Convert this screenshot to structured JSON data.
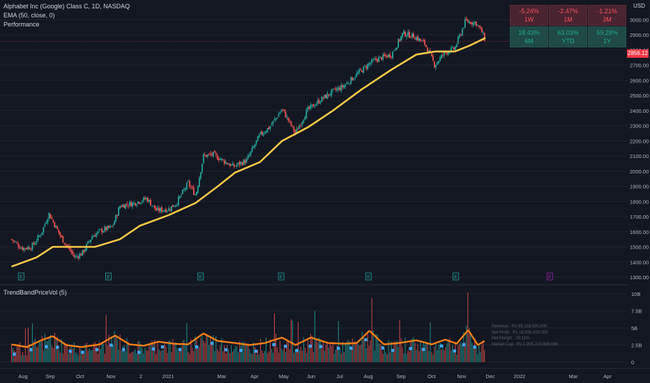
{
  "header": {
    "title": "Alphabet Inc (Google) Class C, 1D, NASDAQ",
    "indicator": "EMA (50, close, 0)",
    "performance_label": "Performance"
  },
  "currency": "USD",
  "last_price": "2856.12",
  "performance": [
    {
      "value": "-5.24%",
      "period": "1W",
      "status": "neg"
    },
    {
      "value": "-2.47%",
      "period": "1M",
      "status": "neg"
    },
    {
      "value": "-1.21%",
      "period": "3M",
      "status": "neg"
    },
    {
      "value": "18.43%",
      "period": "6M",
      "status": "pos"
    },
    {
      "value": "63.03%",
      "period": "YTD",
      "status": "pos"
    },
    {
      "value": "59.28%",
      "period": "1Y",
      "status": "pos"
    }
  ],
  "volume_panel": {
    "title": "TrendBandPriceVol (5)",
    "financials": [
      "Revenue : Rs 65,118,000,000",
      "Net Profit : Rs 18,936,000,000",
      "Net Margin : 29.11%",
      "Market Cap : Rs 1,905,219,888,666"
    ]
  },
  "colors": {
    "background": "#131722",
    "up": "#26a69a",
    "down": "#ef5350",
    "ema": "#f7c948",
    "trend_band": "#f57f17",
    "dots": "#42a5f5",
    "earnings": "#26a69a",
    "future_earnings": "#9c27b0"
  },
  "chart_data": [
    {
      "type": "candlestick",
      "title": "Alphabet Inc (Google) Class C, 1D, NASDAQ",
      "y_range": [
        1300,
        3100
      ],
      "y_ticks": [
        1300,
        1400,
        1500,
        1600,
        1700,
        1800,
        1900,
        2000,
        2100,
        2200,
        2300,
        2400,
        2500,
        2600,
        2700,
        2800,
        2900,
        3000
      ],
      "x_ticks": [
        "Aug",
        "Sep",
        "Oct",
        "Nov",
        "2",
        "2021",
        "Mar",
        "Apr",
        "May",
        "Jun",
        "Jul",
        "Aug",
        "Sep",
        "Oct",
        "Nov",
        "Dec",
        "2022",
        "Mar",
        "Apr"
      ],
      "close_series": [
        {
          "date": "2020-07-20",
          "value": 1550
        },
        {
          "date": "2020-07-31",
          "value": 1490
        },
        {
          "date": "2020-08-10",
          "value": 1500
        },
        {
          "date": "2020-08-20",
          "value": 1590
        },
        {
          "date": "2020-08-28",
          "value": 1720
        },
        {
          "date": "2020-09-10",
          "value": 1560
        },
        {
          "date": "2020-09-24",
          "value": 1430
        },
        {
          "date": "2020-10-02",
          "value": 1460
        },
        {
          "date": "2020-10-12",
          "value": 1570
        },
        {
          "date": "2020-10-22",
          "value": 1610
        },
        {
          "date": "2020-11-02",
          "value": 1630
        },
        {
          "date": "2020-11-10",
          "value": 1770
        },
        {
          "date": "2020-11-25",
          "value": 1790
        },
        {
          "date": "2020-12-08",
          "value": 1820
        },
        {
          "date": "2020-12-18",
          "value": 1740
        },
        {
          "date": "2020-12-31",
          "value": 1750
        },
        {
          "date": "2021-01-08",
          "value": 1790
        },
        {
          "date": "2021-01-20",
          "value": 1920
        },
        {
          "date": "2021-01-28",
          "value": 1840
        },
        {
          "date": "2021-02-05",
          "value": 2100
        },
        {
          "date": "2021-02-15",
          "value": 2110
        },
        {
          "date": "2021-02-28",
          "value": 2060
        },
        {
          "date": "2021-03-08",
          "value": 2030
        },
        {
          "date": "2021-03-22",
          "value": 2070
        },
        {
          "date": "2021-04-05",
          "value": 2240
        },
        {
          "date": "2021-04-15",
          "value": 2290
        },
        {
          "date": "2021-04-28",
          "value": 2410
        },
        {
          "date": "2021-05-12",
          "value": 2250
        },
        {
          "date": "2021-05-24",
          "value": 2400
        },
        {
          "date": "2021-06-07",
          "value": 2470
        },
        {
          "date": "2021-06-21",
          "value": 2530
        },
        {
          "date": "2021-07-01",
          "value": 2560
        },
        {
          "date": "2021-07-15",
          "value": 2640
        },
        {
          "date": "2021-07-28",
          "value": 2710
        },
        {
          "date": "2021-08-05",
          "value": 2740
        },
        {
          "date": "2021-08-20",
          "value": 2770
        },
        {
          "date": "2021-09-01",
          "value": 2910
        },
        {
          "date": "2021-09-13",
          "value": 2890
        },
        {
          "date": "2021-09-24",
          "value": 2840
        },
        {
          "date": "2021-10-04",
          "value": 2700
        },
        {
          "date": "2021-10-14",
          "value": 2780
        },
        {
          "date": "2021-10-25",
          "value": 2810
        },
        {
          "date": "2021-11-05",
          "value": 2990
        },
        {
          "date": "2021-11-16",
          "value": 2980
        },
        {
          "date": "2021-11-22",
          "value": 2920
        },
        {
          "date": "2021-11-26",
          "value": 2856
        }
      ],
      "series": [
        {
          "name": "EMA (50, close, 0)",
          "values": [
            {
              "date": "2020-07-20",
              "value": 1370
            },
            {
              "date": "2020-08-15",
              "value": 1430
            },
            {
              "date": "2020-09-01",
              "value": 1500
            },
            {
              "date": "2020-09-20",
              "value": 1500
            },
            {
              "date": "2020-10-15",
              "value": 1500
            },
            {
              "date": "2020-11-10",
              "value": 1550
            },
            {
              "date": "2020-12-01",
              "value": 1640
            },
            {
              "date": "2020-12-31",
              "value": 1710
            },
            {
              "date": "2021-01-28",
              "value": 1790
            },
            {
              "date": "2021-02-20",
              "value": 1900
            },
            {
              "date": "2021-03-10",
              "value": 1990
            },
            {
              "date": "2021-04-05",
              "value": 2060
            },
            {
              "date": "2021-04-28",
              "value": 2200
            },
            {
              "date": "2021-05-25",
              "value": 2290
            },
            {
              "date": "2021-06-20",
              "value": 2400
            },
            {
              "date": "2021-07-20",
              "value": 2540
            },
            {
              "date": "2021-08-20",
              "value": 2670
            },
            {
              "date": "2021-09-15",
              "value": 2770
            },
            {
              "date": "2021-10-05",
              "value": 2790
            },
            {
              "date": "2021-10-25",
              "value": 2790
            },
            {
              "date": "2021-11-10",
              "value": 2830
            },
            {
              "date": "2021-11-26",
              "value": 2880
            }
          ]
        }
      ]
    },
    {
      "type": "bar",
      "title": "TrendBandPriceVol (5)",
      "y_range": [
        0,
        10000000000
      ],
      "y_ticks": [
        "0",
        "2.5B",
        "5B",
        "7.5B",
        "10B"
      ],
      "series": [
        {
          "name": "TrendBandPriceVol (5)",
          "values": [
            {
              "date": "2020-07-20",
              "value": 2.6
            },
            {
              "date": "2020-08-05",
              "value": 2.2
            },
            {
              "date": "2020-08-20",
              "value": 3.2
            },
            {
              "date": "2020-09-01",
              "value": 3.8
            },
            {
              "date": "2020-09-15",
              "value": 2.5
            },
            {
              "date": "2020-10-01",
              "value": 2.2
            },
            {
              "date": "2020-10-20",
              "value": 2.6
            },
            {
              "date": "2020-11-05",
              "value": 3.9
            },
            {
              "date": "2020-11-20",
              "value": 2.6
            },
            {
              "date": "2020-12-05",
              "value": 2.4
            },
            {
              "date": "2020-12-20",
              "value": 3.0
            },
            {
              "date": "2021-01-05",
              "value": 2.7
            },
            {
              "date": "2021-01-20",
              "value": 2.6
            },
            {
              "date": "2021-02-05",
              "value": 4.2
            },
            {
              "date": "2021-02-20",
              "value": 3.1
            },
            {
              "date": "2021-03-10",
              "value": 2.8
            },
            {
              "date": "2021-03-25",
              "value": 2.5
            },
            {
              "date": "2021-04-10",
              "value": 2.8
            },
            {
              "date": "2021-04-28",
              "value": 3.6
            },
            {
              "date": "2021-05-12",
              "value": 2.5
            },
            {
              "date": "2021-05-28",
              "value": 3.6
            },
            {
              "date": "2021-06-15",
              "value": 2.8
            },
            {
              "date": "2021-07-01",
              "value": 2.7
            },
            {
              "date": "2021-07-15",
              "value": 2.8
            },
            {
              "date": "2021-07-28",
              "value": 4.6
            },
            {
              "date": "2021-08-12",
              "value": 2.6
            },
            {
              "date": "2021-08-28",
              "value": 2.8
            },
            {
              "date": "2021-09-15",
              "value": 3.2
            },
            {
              "date": "2021-10-01",
              "value": 2.6
            },
            {
              "date": "2021-10-15",
              "value": 3.3
            },
            {
              "date": "2021-10-27",
              "value": 2.7
            },
            {
              "date": "2021-11-08",
              "value": 4.7
            },
            {
              "date": "2021-11-18",
              "value": 2.5
            },
            {
              "date": "2021-11-26",
              "value": 3.2
            }
          ]
        }
      ]
    }
  ]
}
